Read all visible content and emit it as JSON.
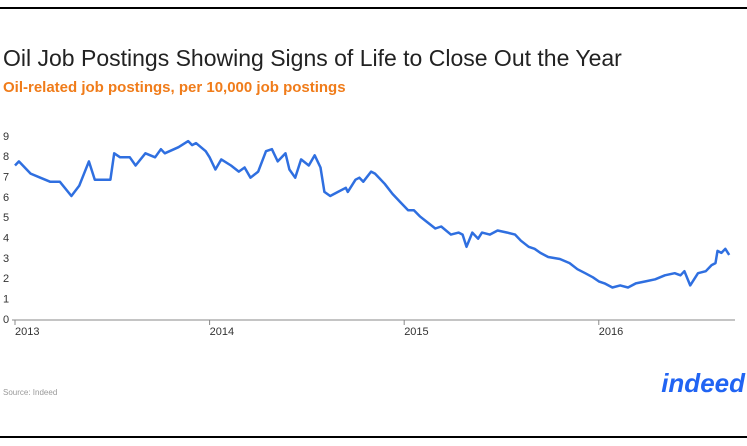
{
  "chart_data": {
    "type": "line",
    "title": "Oil Job Postings Showing Signs of Life to Close Out the Year",
    "subtitle": "Oil-related job postings, per 10,000 job postings",
    "source": "Source: Indeed",
    "logo": "indeed",
    "color": "#2f6fe0",
    "x": [
      2013.0,
      2013.02,
      2013.08,
      2013.13,
      2013.18,
      2013.23,
      2013.29,
      2013.33,
      2013.38,
      2013.41,
      2013.49,
      2013.51,
      2013.54,
      2013.59,
      2013.62,
      2013.67,
      2013.72,
      2013.75,
      2013.77,
      2013.84,
      2013.89,
      2013.91,
      2013.93,
      2013.98,
      2014.0,
      2014.03,
      2014.06,
      2014.11,
      2014.15,
      2014.18,
      2014.21,
      2014.25,
      2014.29,
      2014.32,
      2014.35,
      2014.39,
      2014.41,
      2014.44,
      2014.47,
      2014.51,
      2014.54,
      2014.57,
      2014.59,
      2014.62,
      2014.66,
      2014.7,
      2014.71,
      2014.75,
      2014.77,
      2014.79,
      2014.83,
      2014.85,
      2014.9,
      2014.94,
      2014.98,
      2015.02,
      2015.05,
      2015.08,
      2015.12,
      2015.16,
      2015.19,
      2015.24,
      2015.28,
      2015.3,
      2015.32,
      2015.35,
      2015.38,
      2015.4,
      2015.44,
      2015.48,
      2015.53,
      2015.57,
      2015.6,
      2015.64,
      2015.67,
      2015.7,
      2015.74,
      2015.8,
      2015.85,
      2015.89,
      2015.93,
      2015.97,
      2016.0,
      2016.03,
      2016.07,
      2016.11,
      2016.15,
      2016.19,
      2016.24,
      2016.29,
      2016.34,
      2016.39,
      2016.42,
      2016.44,
      2016.47,
      2016.51,
      2016.55,
      2016.58,
      2016.6,
      2016.61,
      2016.63,
      2016.65,
      2016.67
    ],
    "values": [
      7.6,
      7.8,
      7.2,
      7.0,
      6.8,
      6.8,
      6.1,
      6.6,
      7.8,
      6.9,
      6.9,
      8.2,
      8.0,
      8.0,
      7.6,
      8.2,
      8.0,
      8.4,
      8.2,
      8.5,
      8.8,
      8.6,
      8.7,
      8.3,
      8.0,
      7.4,
      7.9,
      7.6,
      7.3,
      7.5,
      7.0,
      7.3,
      8.3,
      8.4,
      7.8,
      8.2,
      7.4,
      7.0,
      7.9,
      7.6,
      8.1,
      7.5,
      6.3,
      6.1,
      6.3,
      6.5,
      6.3,
      6.9,
      7.0,
      6.8,
      7.3,
      7.2,
      6.7,
      6.2,
      5.8,
      5.4,
      5.4,
      5.1,
      4.8,
      4.5,
      4.6,
      4.2,
      4.3,
      4.2,
      3.6,
      4.3,
      4.0,
      4.3,
      4.2,
      4.4,
      4.3,
      4.2,
      3.9,
      3.6,
      3.5,
      3.3,
      3.1,
      3.0,
      2.8,
      2.5,
      2.3,
      2.1,
      1.9,
      1.8,
      1.6,
      1.7,
      1.6,
      1.8,
      1.9,
      2.0,
      2.2,
      2.3,
      2.2,
      2.4,
      1.7,
      2.3,
      2.4,
      2.7,
      2.8,
      3.4,
      3.3,
      3.5,
      3.2
    ],
    "xlim": [
      2013,
      2016.7
    ],
    "xticks": [
      2013,
      2014,
      2015,
      2016
    ],
    "ylim": [
      0,
      9
    ],
    "yticks": [
      0,
      1,
      2,
      3,
      4,
      5,
      6,
      7,
      8,
      9
    ],
    "grid": false
  }
}
